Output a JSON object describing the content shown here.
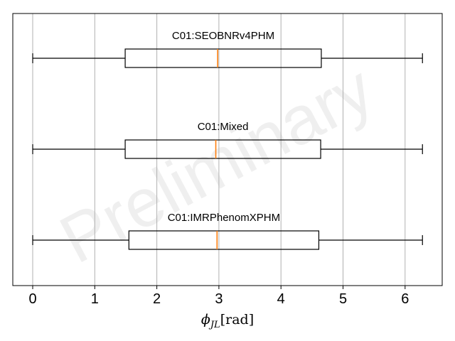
{
  "chart_data": {
    "type": "boxplot",
    "orientation": "horizontal",
    "xlabel": "ϕ",
    "xlabel_sub": "JL",
    "xlabel_unit": "[rad]",
    "xlim": [
      -0.32,
      6.6
    ],
    "xticks": [
      0,
      1,
      2,
      3,
      4,
      5,
      6
    ],
    "xtick_labels": [
      "0",
      "1",
      "2",
      "3",
      "4",
      "5",
      "6"
    ],
    "grid": "vertical",
    "watermark": "Preliminary",
    "colors": {
      "box": "#000000",
      "median": "#ff7f0e",
      "grid": "#b0b0b0",
      "frame": "#000000"
    },
    "series": [
      {
        "name": "C01:SEOBNRv4PHM",
        "whisker_low": 0.0,
        "q1": 1.49,
        "median": 2.98,
        "q3": 4.65,
        "whisker_high": 6.28
      },
      {
        "name": "C01:Mixed",
        "whisker_low": 0.0,
        "q1": 1.49,
        "median": 2.95,
        "q3": 4.64,
        "whisker_high": 6.28
      },
      {
        "name": "C01:IMRPhenomXPHM",
        "whisker_low": 0.0,
        "q1": 1.55,
        "median": 2.97,
        "q3": 4.61,
        "whisker_high": 6.28
      }
    ]
  }
}
